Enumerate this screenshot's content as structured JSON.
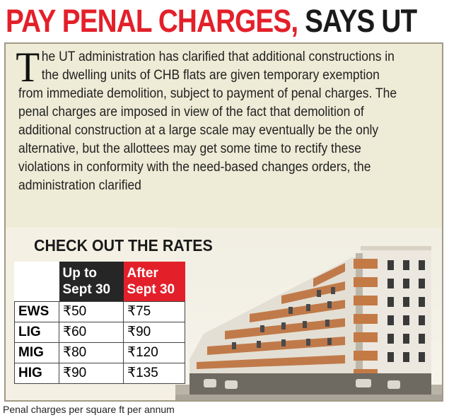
{
  "headline": {
    "part1": "PAY PENAL CHARGES,",
    "part2": "SAYS UT"
  },
  "article": {
    "dropcap": "T",
    "text": "he UT administration has clarified that additional constructions in the dwelling units of CHB flats are given temporary exemption from immediate demolition, subject to payment of penal charges. The penal charges are imposed in view of the fact that demolition of additional construction at a large scale may eventually be the only alternative, but the allottees may get some time to rectify these violations in conformity with the need-based changes orders, the administration clarified"
  },
  "rates": {
    "title": "CHECK OUT THE RATES",
    "col1": [
      "Up to",
      "Sept 30"
    ],
    "col2": [
      "After",
      "Sept 30"
    ],
    "rows": [
      {
        "category": "EWS",
        "upto": "₹50",
        "after": "₹75"
      },
      {
        "category": "LIG",
        "upto": "₹60",
        "after": "₹90"
      },
      {
        "category": "MIG",
        "upto": "₹80",
        "after": "₹120"
      },
      {
        "category": "HIG",
        "upto": "₹90",
        "after": "₹135"
      }
    ]
  },
  "caption": "Penal charges per square ft per annum",
  "colors": {
    "accent_red": "#e3202a",
    "panel_bg": "#eeebd6",
    "dark_header": "#262626"
  }
}
